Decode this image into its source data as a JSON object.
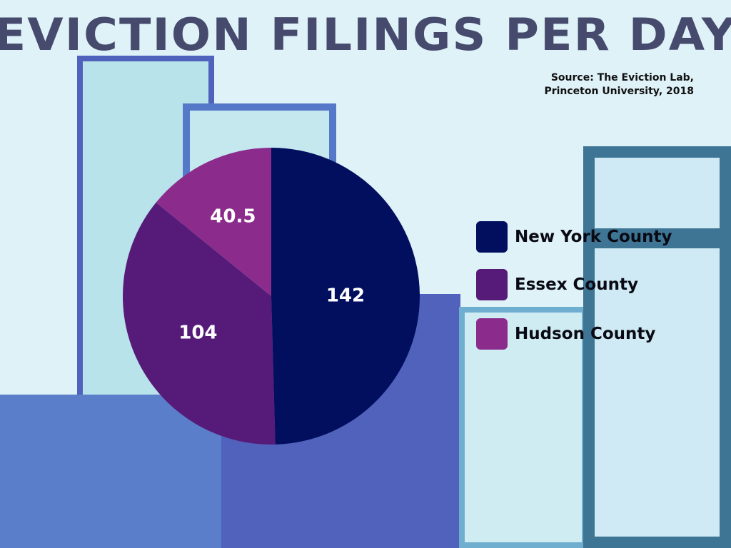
{
  "title": "EVICTION FILINGS PER DAY",
  "source": [
    "Source: The Eviction Lab,",
    "Princeton University, 2018"
  ],
  "chart_data": {
    "type": "pie",
    "title": "EVICTION FILINGS PER DAY",
    "categories": [
      "New York County",
      "Essex County",
      "Hudson County"
    ],
    "values": [
      142,
      104,
      40.5
    ],
    "labels": [
      "142",
      "104",
      "40.5"
    ],
    "colors": [
      "#020f5e",
      "#561b78",
      "#8b2c8c"
    ],
    "legend_position": "right"
  }
}
